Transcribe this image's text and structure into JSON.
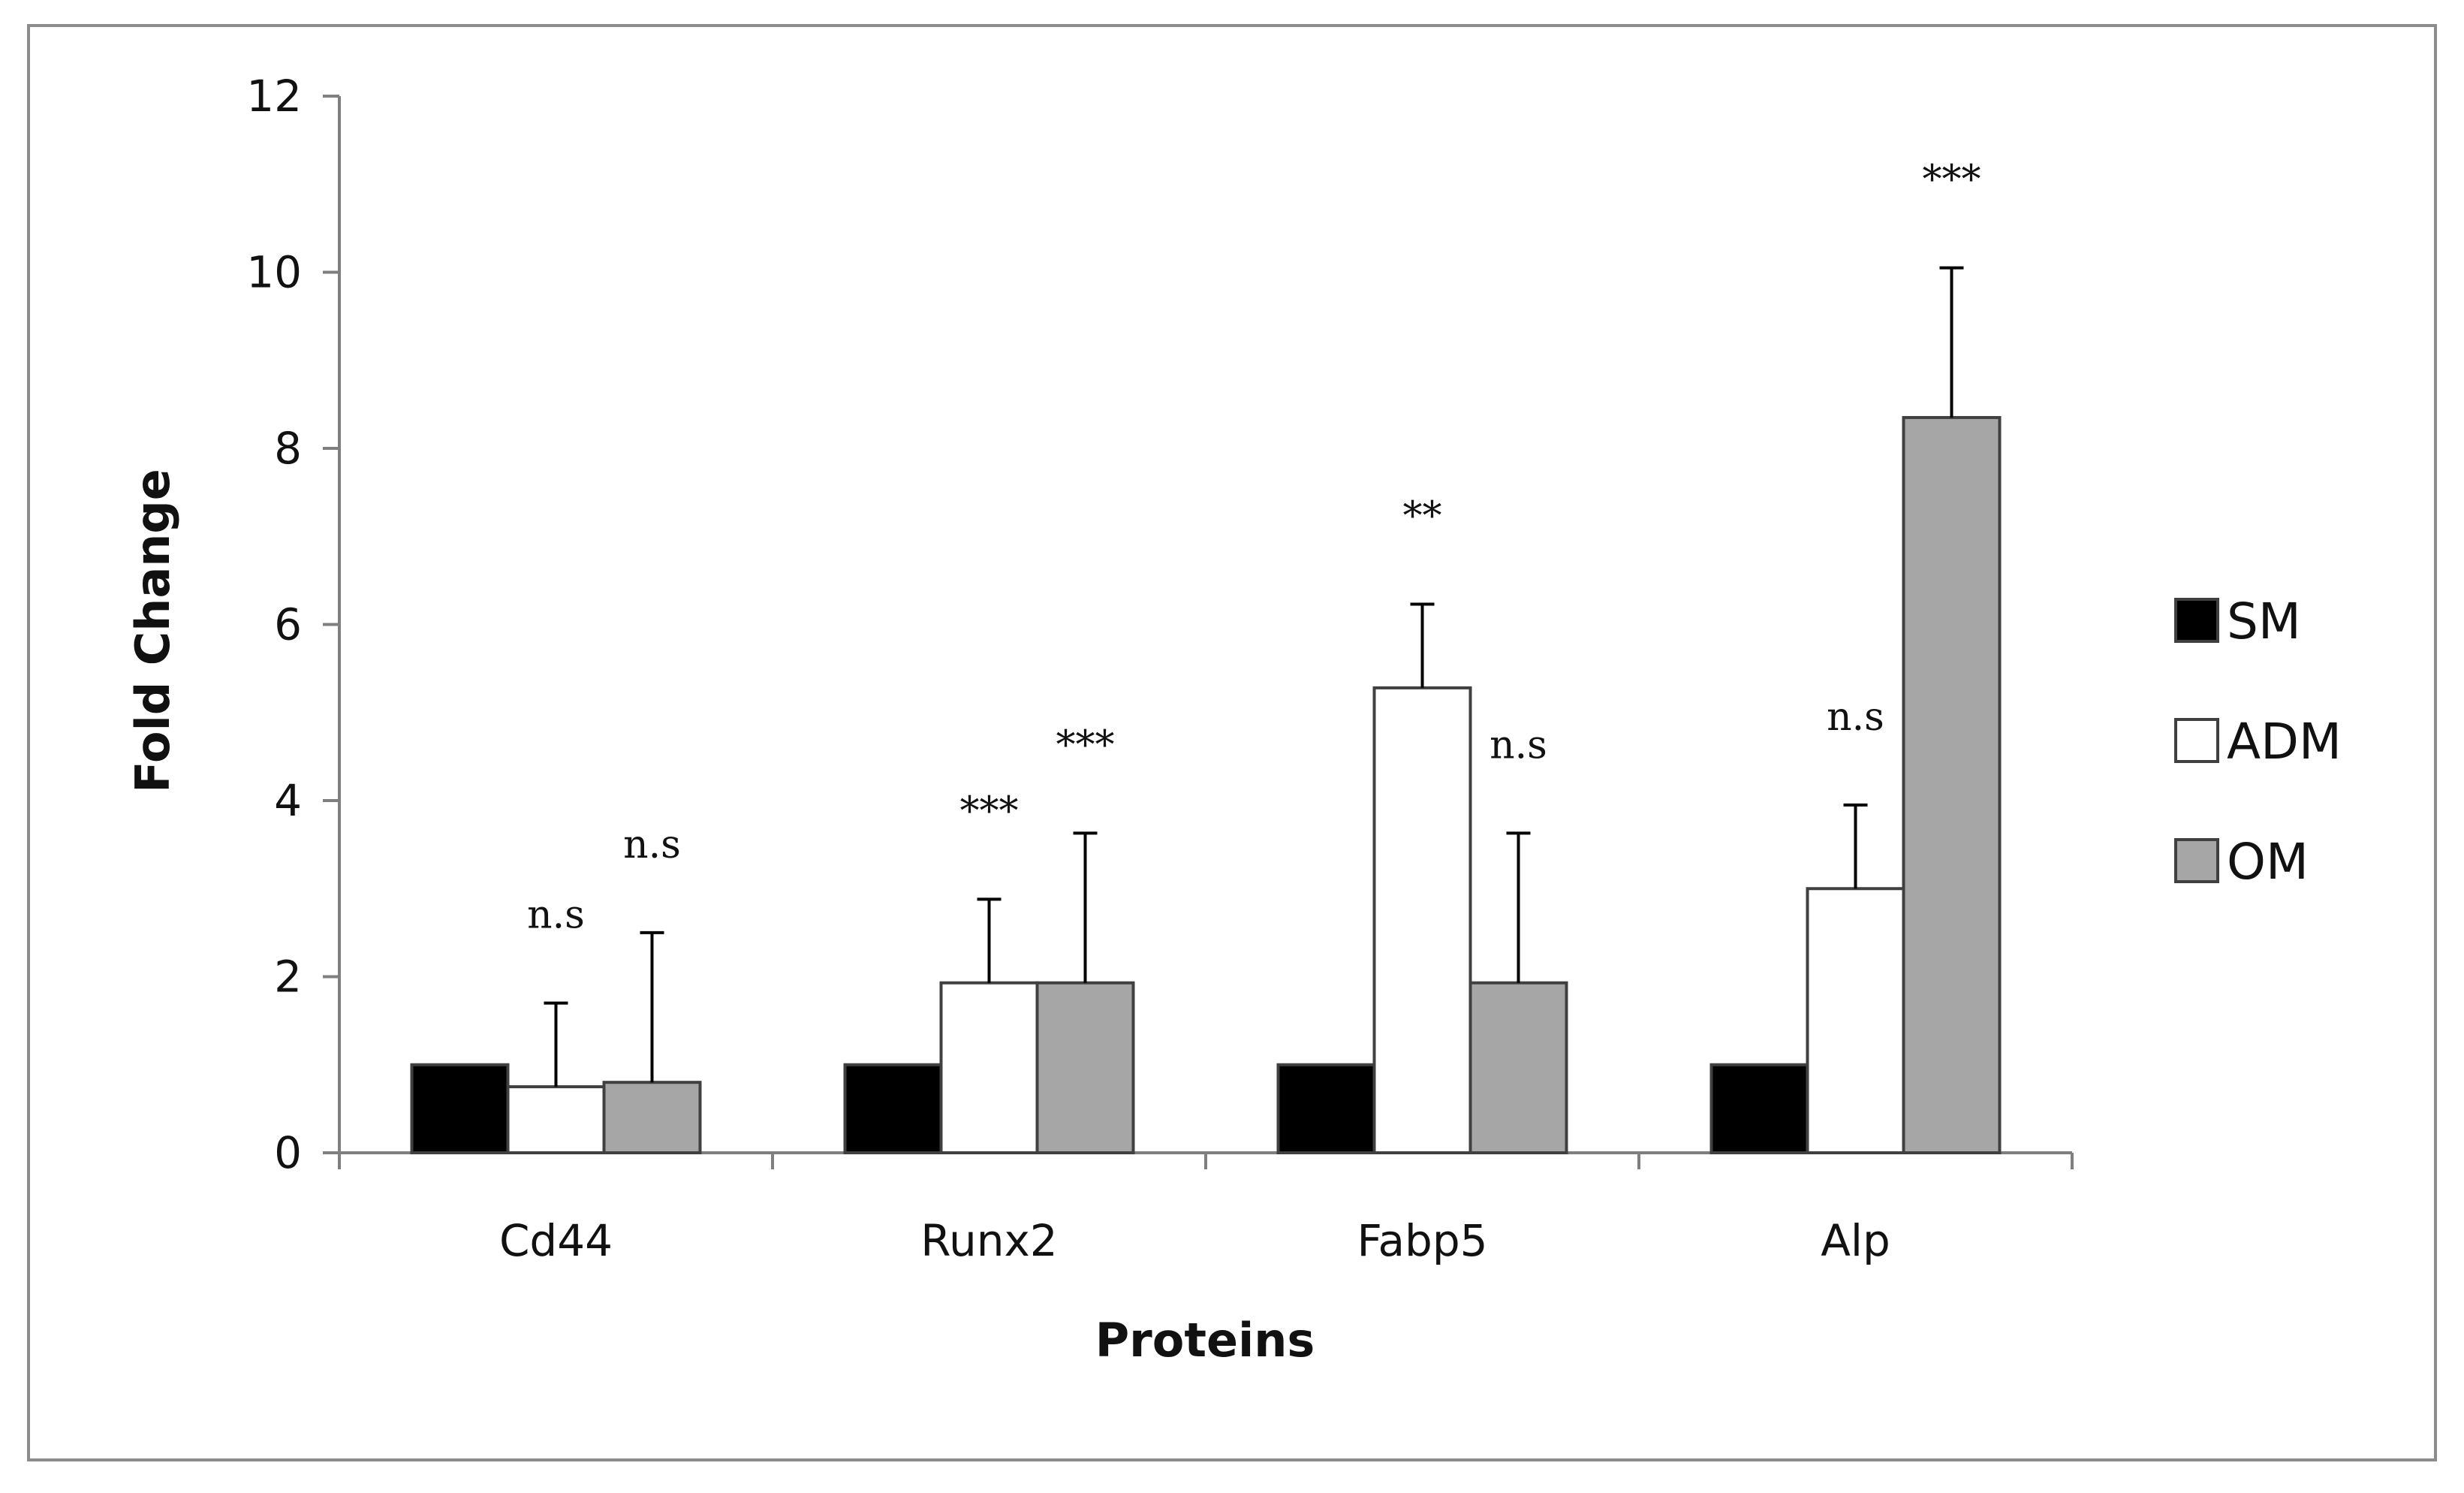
{
  "chart_data": {
    "type": "bar",
    "title": "",
    "xlabel": "Proteins",
    "ylabel": "Fold Change",
    "ylim": [
      0,
      12
    ],
    "yticks": [
      0,
      2,
      4,
      6,
      8,
      10,
      12
    ],
    "categories": [
      "Cd44",
      "Runx2",
      "Fabp5",
      "Alp"
    ],
    "series": [
      {
        "name": "SM",
        "color": "#000000",
        "values": [
          1,
          1,
          1,
          1
        ],
        "errors": [
          0,
          0,
          0,
          0
        ],
        "significance": [
          "",
          "",
          "",
          ""
        ]
      },
      {
        "name": "ADM",
        "color": "#ffffff",
        "values": [
          0.75,
          1.93,
          5.28,
          3.0
        ],
        "errors": [
          0.95,
          0.95,
          0.95,
          0.95
        ],
        "significance": [
          "n.s",
          "***",
          "**",
          "n.s"
        ]
      },
      {
        "name": "OM",
        "color": "#a6a6a6",
        "values": [
          0.8,
          1.93,
          1.93,
          8.35
        ],
        "errors": [
          1.7,
          1.7,
          1.7,
          1.7
        ],
        "significance": [
          "n.s",
          "***",
          "n.s",
          "***"
        ]
      }
    ],
    "legend_position": "right",
    "grid": false
  }
}
